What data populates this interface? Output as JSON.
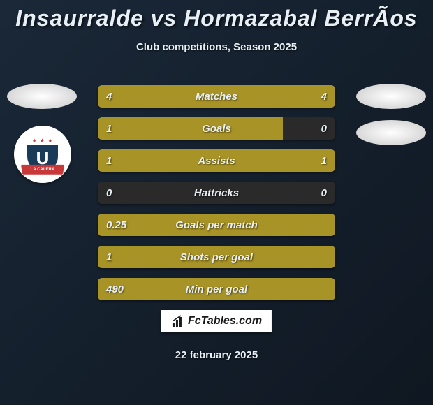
{
  "header": {
    "title": "Insaurralde vs Hormazabal BerrÃ­os",
    "subtitle": "Club competitions, Season 2025"
  },
  "colors": {
    "fill_olive": "#a89326",
    "fill_dark": "#2a2a2a",
    "background_start": "#1a2838",
    "background_end": "#0f1721",
    "text": "#e8f0f5",
    "club_blue": "#1a3a5a",
    "club_red": "#c83838"
  },
  "club": {
    "stars": "★ ★ ★",
    "letter": "U",
    "ribbon": "LA CALERA"
  },
  "stats": [
    {
      "label": "Matches",
      "left_val": "4",
      "right_val": "4",
      "left_fill_pct": 50,
      "left_color": "#a89326",
      "right_color": "#a89326"
    },
    {
      "label": "Goals",
      "left_val": "1",
      "right_val": "0",
      "left_fill_pct": 78,
      "left_color": "#a89326",
      "right_color": "#2a2a2a"
    },
    {
      "label": "Assists",
      "left_val": "1",
      "right_val": "1",
      "left_fill_pct": 50,
      "left_color": "#a89326",
      "right_color": "#a89326"
    },
    {
      "label": "Hattricks",
      "left_val": "0",
      "right_val": "0",
      "left_fill_pct": 50,
      "left_color": "#2a2a2a",
      "right_color": "#2a2a2a"
    },
    {
      "label": "Goals per match",
      "left_val": "0.25",
      "right_val": "",
      "left_fill_pct": 100,
      "left_color": "#a89326",
      "right_color": "#a89326"
    },
    {
      "label": "Shots per goal",
      "left_val": "1",
      "right_val": "",
      "left_fill_pct": 100,
      "left_color": "#a89326",
      "right_color": "#a89326"
    },
    {
      "label": "Min per goal",
      "left_val": "490",
      "right_val": "",
      "left_fill_pct": 100,
      "left_color": "#a89326",
      "right_color": "#a89326"
    }
  ],
  "footer": {
    "logo_text": "FcTables.com",
    "date": "22 february 2025"
  }
}
